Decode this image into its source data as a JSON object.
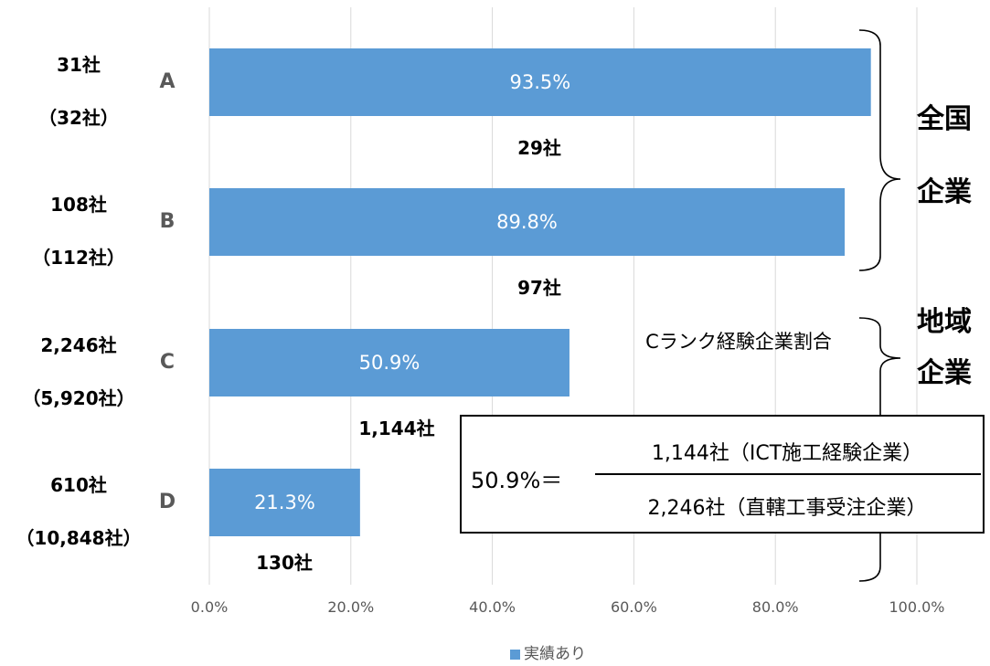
{
  "chart_data": {
    "type": "bar",
    "orientation": "horizontal",
    "categories": [
      "A",
      "B",
      "C",
      "D"
    ],
    "series": [
      {
        "name": "実績あり",
        "values": [
          93.5,
          89.8,
          50.9,
          21.3
        ]
      }
    ],
    "value_labels": [
      "93.5%",
      "89.8%",
      "50.9%",
      "21.3%"
    ],
    "xlim": [
      0,
      100
    ],
    "x_ticks": [
      "0.0%",
      "20.0%",
      "40.0%",
      "60.0%",
      "80.0%",
      "100.0%"
    ],
    "grid": true,
    "legend": "bottom",
    "color": "#5b9bd5"
  },
  "left_labels": [
    {
      "top": "31社",
      "bottom": "（32社）"
    },
    {
      "top": "108社",
      "bottom": "（112社）"
    },
    {
      "top": "2,246社",
      "bottom": "（5,920社）"
    },
    {
      "top": "610社",
      "bottom": "（10,848社）"
    }
  ],
  "under_labels": [
    "29社",
    "97社",
    "1,144社",
    "130社"
  ],
  "groups": [
    {
      "line1": "全国",
      "line2": "企業"
    },
    {
      "line1": "地域",
      "line2": "企業"
    }
  ],
  "formula": {
    "title": "Cランク経験企業割合",
    "lhs": "50.9%＝",
    "numerator": "1,144社（ICT施工経験企業）",
    "denominator": "2,246社（直轄工事受注企業）"
  }
}
